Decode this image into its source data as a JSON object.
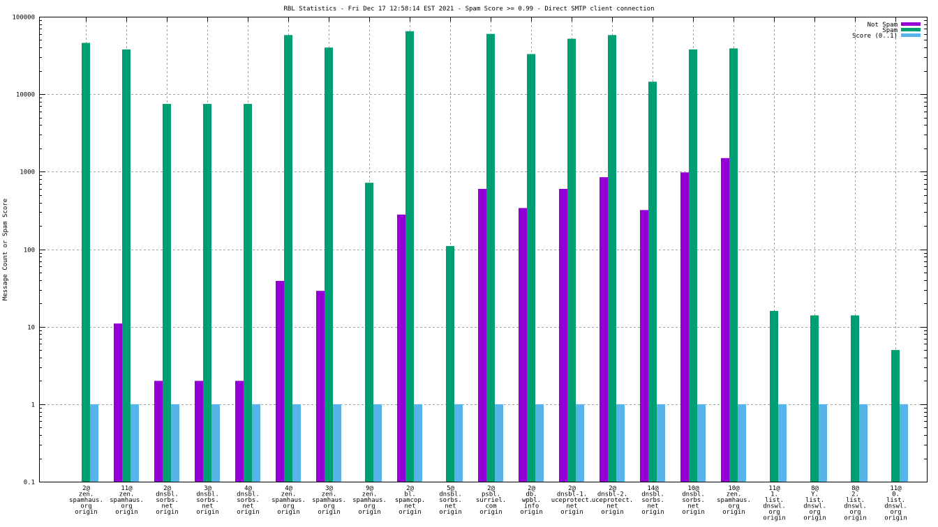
{
  "chart_data": {
    "type": "bar",
    "title": "RBL Statistics - Fri Dec 17 12:58:14 EST 2021 - Spam Score >= 0.99 - Direct SMTP client connection",
    "xlabel": "",
    "ylabel": "Message Count or Spam Score",
    "yscale": "log",
    "ylim": [
      0.1,
      100000
    ],
    "yticks": [
      {
        "value": 0.1,
        "label": "0.1"
      },
      {
        "value": 1,
        "label": "1"
      },
      {
        "value": 10,
        "label": "10"
      },
      {
        "value": 100,
        "label": "100"
      },
      {
        "value": 1000,
        "label": "1000"
      },
      {
        "value": 10000,
        "label": "10000"
      },
      {
        "value": 100000,
        "label": "100000"
      }
    ],
    "grid": true,
    "legend_position": "top-right",
    "categories": [
      [
        "2@",
        "zen.",
        "spamhaus.",
        "org",
        "origin"
      ],
      [
        "11@",
        "zen.",
        "spamhaus.",
        "org",
        "origin"
      ],
      [
        "2@",
        "dnsbl.",
        "sorbs.",
        "net",
        "origin"
      ],
      [
        "3@",
        "dnsbl.",
        "sorbs.",
        "net",
        "origin"
      ],
      [
        "4@",
        "dnsbl.",
        "sorbs.",
        "net",
        "origin"
      ],
      [
        "4@",
        "zen.",
        "spamhaus.",
        "org",
        "origin"
      ],
      [
        "3@",
        "zen.",
        "spamhaus.",
        "org",
        "origin"
      ],
      [
        "9@",
        "zen.",
        "spamhaus.",
        "org",
        "origin"
      ],
      [
        "2@",
        "bl.",
        "spamcop.",
        "net",
        "origin"
      ],
      [
        "5@",
        "dnsbl.",
        "sorbs.",
        "net",
        "origin"
      ],
      [
        "2@",
        "psbl.",
        "surriel.",
        "com",
        "origin"
      ],
      [
        "2@",
        "db.",
        "wpbl.",
        "info",
        "origin"
      ],
      [
        "2@",
        "dnsbl-1.",
        "uceprotect.",
        "net",
        "origin"
      ],
      [
        "2@",
        "dnsbl-2.",
        "uceprotect.",
        "net",
        "origin"
      ],
      [
        "14@",
        "dnsbl.",
        "sorbs.",
        "net",
        "origin"
      ],
      [
        "10@",
        "dnsbl.",
        "sorbs.",
        "net",
        "origin"
      ],
      [
        "10@",
        "zen.",
        "spamhaus.",
        "org",
        "origin"
      ],
      [
        "11@",
        "1.",
        "list.",
        "dnswl.",
        "org",
        "origin"
      ],
      [
        "8@",
        "Y.",
        "list.",
        "dnswl.",
        "org",
        "origin"
      ],
      [
        "8@",
        "2.",
        "list.",
        "dnswl.",
        "org",
        "origin"
      ],
      [
        "11@",
        "0.",
        "list.",
        "dnswl.",
        "org",
        "origin"
      ]
    ],
    "series": [
      {
        "name": "Not Spam",
        "color": "#9400d3",
        "values": [
          0,
          11,
          2,
          2,
          2,
          39,
          29,
          0,
          280,
          0,
          600,
          340,
          600,
          850,
          320,
          980,
          1500,
          0,
          0,
          0,
          0
        ]
      },
      {
        "name": "Spam",
        "color": "#009e73",
        "values": [
          46000,
          37800,
          7500,
          7500,
          7500,
          58000,
          40000,
          720,
          65000,
          110,
          60000,
          33000,
          52000,
          58000,
          14500,
          37800,
          39000,
          16,
          14,
          14,
          5
        ]
      },
      {
        "name": "Score (0..1)",
        "color": "#56b4e9",
        "values": [
          1,
          1,
          1,
          1,
          1,
          1,
          1,
          1,
          1,
          1,
          1,
          1,
          1,
          1,
          1,
          1,
          1,
          1,
          1,
          1,
          1
        ]
      }
    ]
  }
}
